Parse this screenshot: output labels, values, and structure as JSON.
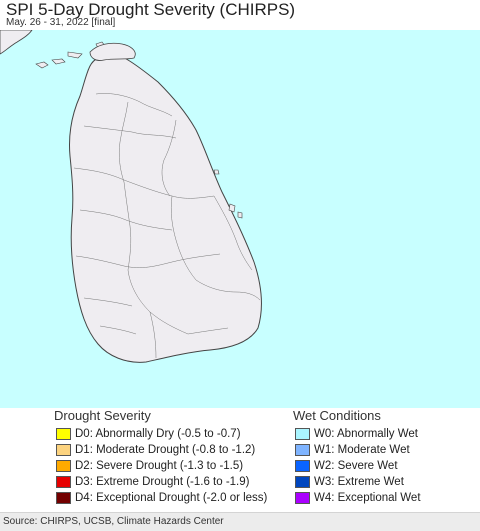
{
  "header": {
    "title": "SPI 5-Day Drought Severity (CHIRPS)",
    "subtitle": "May. 26 - 31, 2022 [final]"
  },
  "map": {
    "ocean_color": "#c8ffff",
    "land_color": "#efedf1",
    "border_color": "#444444"
  },
  "legend": {
    "drought": {
      "heading": "Drought Severity",
      "items": [
        {
          "label": "D0: Abnormally Dry (-0.5 to -0.7)",
          "color": "#ffff00"
        },
        {
          "label": "D1: Moderate Drought (-0.8 to -1.2)",
          "color": "#fcd37f"
        },
        {
          "label": "D2: Severe Drought (-1.3 to -1.5)",
          "color": "#ffaa00"
        },
        {
          "label": "D3: Extreme Drought (-1.6 to -1.9)",
          "color": "#e60000"
        },
        {
          "label": "D4: Exceptional Drought (-2.0 or less)",
          "color": "#730000"
        }
      ]
    },
    "wet": {
      "heading": "Wet Conditions",
      "items": [
        {
          "label": "W0: Abnormally Wet",
          "color": "#aaf5ff"
        },
        {
          "label": "W1: Moderate Wet",
          "color": "#7fb4ff"
        },
        {
          "label": "W2: Severe Wet",
          "color": "#0a64ff"
        },
        {
          "label": "W3: Extreme Wet",
          "color": "#0046be"
        },
        {
          "label": "W4: Exceptional Wet",
          "color": "#aa00ff"
        }
      ]
    }
  },
  "footer": {
    "source": "Source: CHIRPS, UCSB, Climate Hazards Center"
  }
}
